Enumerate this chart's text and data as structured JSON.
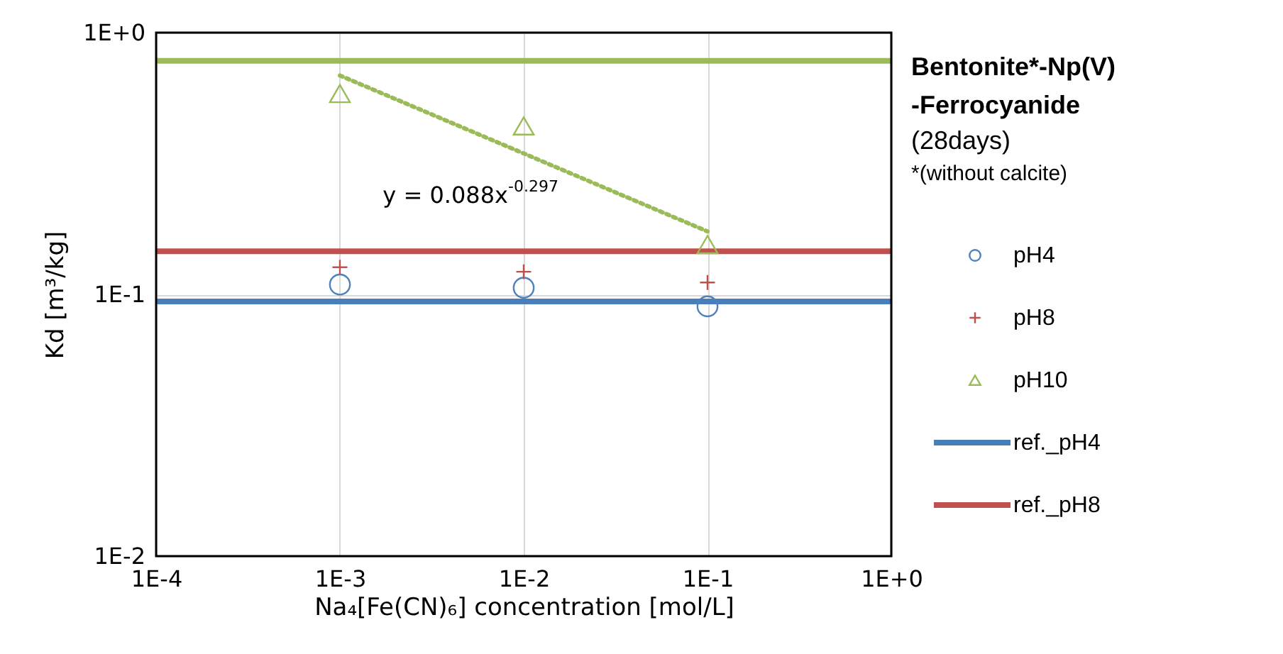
{
  "chart_data": {
    "type": "scatter",
    "title": "Bentonite*-Np(V)\n-Ferrocyanide",
    "subtitle": "(28days)",
    "xlabel": "Na₄[Fe(CN)₆] concentration [mol/L]",
    "ylabel": "Kd [m³/kg]",
    "annotations": [
      "*(without calcite)",
      "y = 0.088x$^{-0.297}$"
    ],
    "log": "xy",
    "xlim": [
      0.0001,
      1
    ],
    "ylim": [
      0.01,
      1
    ],
    "xticks": [
      {
        "value": 0.0001,
        "label": "1E-4"
      },
      {
        "value": 0.001,
        "label": "1E-3"
      },
      {
        "value": 0.01,
        "label": "1E-2"
      },
      {
        "value": 0.1,
        "label": "1E-1"
      },
      {
        "value": 1,
        "label": "1E+0"
      }
    ],
    "yticks": [
      {
        "value": 0.01,
        "label": "1E-2"
      },
      {
        "value": 0.1,
        "label": "1E-1"
      },
      {
        "value": 1,
        "label": "1E+0"
      }
    ],
    "grid": true,
    "legend": "right",
    "series": [
      {
        "name": "pH4",
        "marker": "circle",
        "color": "#4f81bd",
        "x": [
          0.001,
          0.01,
          0.1
        ],
        "values": [
          0.109,
          0.106,
          0.09
        ]
      },
      {
        "name": "pH8",
        "marker": "cross",
        "color": "#c0504d",
        "x": [
          0.001,
          0.01,
          0.1
        ],
        "values": [
          0.127,
          0.122,
          0.111
        ]
      },
      {
        "name": "pH10",
        "marker": "triangle",
        "color": "#9bbb59",
        "x": [
          0.001,
          0.01,
          0.1
        ],
        "values": [
          0.585,
          0.44,
          0.155
        ]
      },
      {
        "type": "line",
        "line_style": "dotted",
        "color": "#9bbb59",
        "x": [
          0.001,
          0.1
        ],
        "values": [
          0.686,
          0.174
        ]
      },
      {
        "name": "ref._pH4",
        "type": "line",
        "line_style": "solid",
        "color": "#4a7ebb",
        "x": [
          0.0001,
          1
        ],
        "values": [
          0.094,
          0.094
        ]
      },
      {
        "name": "ref._pH8",
        "type": "line",
        "line_style": "solid",
        "color": "#c0504d",
        "x": [
          0.0001,
          1
        ],
        "values": [
          0.146,
          0.146
        ]
      },
      {
        "type": "line",
        "line_style": "solid",
        "color": "#9bbb59",
        "x": [
          0.0001,
          1
        ],
        "values": [
          0.78,
          0.78
        ]
      }
    ]
  }
}
